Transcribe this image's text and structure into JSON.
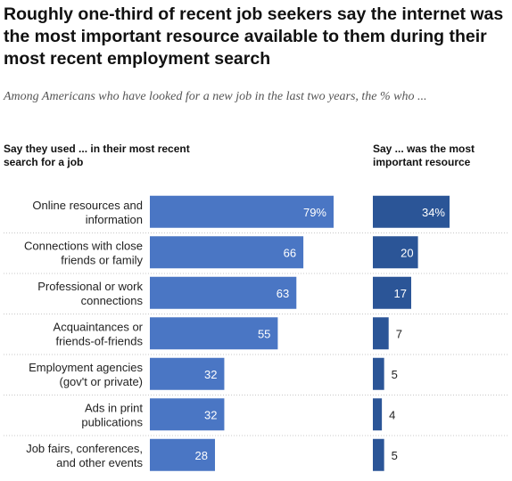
{
  "title": "Roughly one-third of recent job seekers say the internet was the most important resource available to them during their most recent employment search",
  "subtitle": "Among Americans who have looked for a new job in the last two years, the % who ...",
  "chart_data": [
    {
      "type": "bar",
      "orientation": "horizontal",
      "title": "Say they used ... in their most recent search for a job",
      "categories": [
        "Online resources and information",
        "Connections with close friends or family",
        "Professional or work connections",
        "Acquaintances or friends-of-friends",
        "Employment agencies (gov't or private)",
        "Ads in print publications",
        "Job fairs, conferences, and other events"
      ],
      "values": [
        79,
        66,
        63,
        55,
        32,
        32,
        28
      ],
      "value_labels": [
        "79%",
        "66",
        "63",
        "55",
        "32",
        "32",
        "28"
      ],
      "bar_color": "#4a76c4"
    },
    {
      "type": "bar",
      "orientation": "horizontal",
      "title": "Say ... was the most important resource",
      "categories": [
        "Online resources and information",
        "Connections with close friends or family",
        "Professional or work connections",
        "Acquaintances or friends-of-friends",
        "Employment agencies (gov't or private)",
        "Ads in print publications",
        "Job fairs, conferences, and other events"
      ],
      "values": [
        34,
        20,
        17,
        7,
        5,
        4,
        5
      ],
      "value_labels": [
        "34%",
        "20",
        "17",
        "7",
        "5",
        "4",
        "5"
      ],
      "bar_color": "#2b5597"
    }
  ],
  "category_lines": [
    [
      "Online resources and",
      "information"
    ],
    [
      "Connections with close",
      "friends or family"
    ],
    [
      "Professional or work",
      "connections"
    ],
    [
      "Acquaintances or",
      "friends-of-friends"
    ],
    [
      "Employment agencies",
      "(gov't or private)"
    ],
    [
      "Ads in print",
      "publications"
    ],
    [
      "Job fairs, conferences,",
      "and other events"
    ]
  ],
  "left_header_lines": [
    "Say they used ... in their most recent",
    "search for a job"
  ],
  "right_header_lines": [
    "Say ... was the most",
    "important resource"
  ],
  "colors": {
    "used_bar": "#4a76c4",
    "important_bar": "#2b5597",
    "separator": "#c8c8c8",
    "label_in_bar": "#ffffff",
    "label_outside": "#222222"
  }
}
